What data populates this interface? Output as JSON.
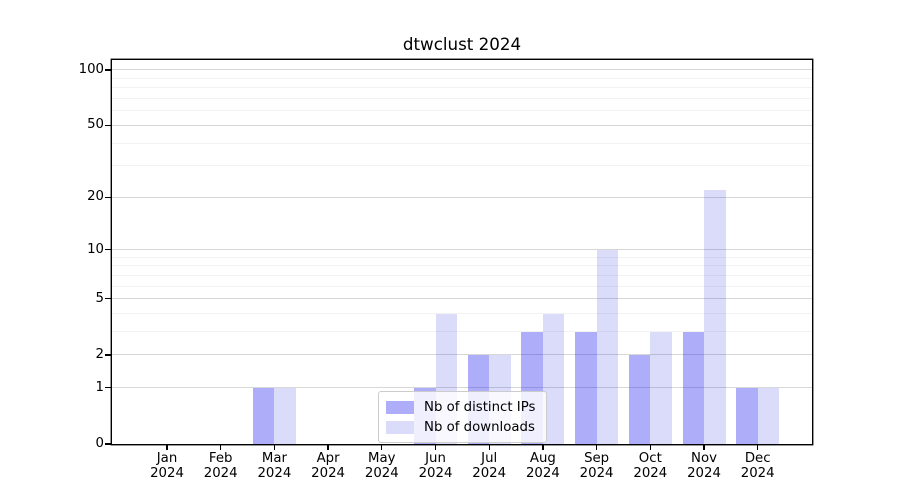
{
  "chart_data": {
    "type": "bar",
    "title": "dtwclust 2024",
    "scale": "log1p",
    "grid": "horizontal",
    "legend_position": "lower-center",
    "ylim": [
      0,
      113
    ],
    "y_ticks": [
      0,
      1,
      2,
      5,
      10,
      20,
      50,
      100
    ],
    "y_major_gridlines": [
      1,
      2,
      5,
      10,
      20,
      50,
      100
    ],
    "y_minor_gridlines": [
      3,
      4,
      6,
      7,
      8,
      9,
      30,
      40,
      60,
      70,
      80,
      90
    ],
    "x_tick_labels": [
      [
        "Jan",
        "2024"
      ],
      [
        "Feb",
        "2024"
      ],
      [
        "Mar",
        "2024"
      ],
      [
        "Apr",
        "2024"
      ],
      [
        "May",
        "2024"
      ],
      [
        "Jun",
        "2024"
      ],
      [
        "Jul",
        "2024"
      ],
      [
        "Aug",
        "2024"
      ],
      [
        "Sep",
        "2024"
      ],
      [
        "Oct",
        "2024"
      ],
      [
        "Nov",
        "2024"
      ],
      [
        "Dec",
        "2024"
      ]
    ],
    "series": [
      {
        "name": "Nb of distinct IPs",
        "color": "rgba(20,20,240,0.35)",
        "values": [
          0,
          0,
          1,
          0,
          0,
          1,
          2,
          3,
          3,
          2,
          3,
          1
        ]
      },
      {
        "name": "Nb of downloads",
        "color": "rgba(15,15,222,0.15)",
        "values": [
          0,
          0,
          1,
          0,
          0,
          4,
          2,
          4,
          10,
          3,
          22,
          1
        ]
      }
    ],
    "colors": {
      "axis": "#000000",
      "grid_major": "#d7d7d7",
      "grid_minor": "#f2f2f2",
      "legend_border": "#cccccc"
    }
  }
}
